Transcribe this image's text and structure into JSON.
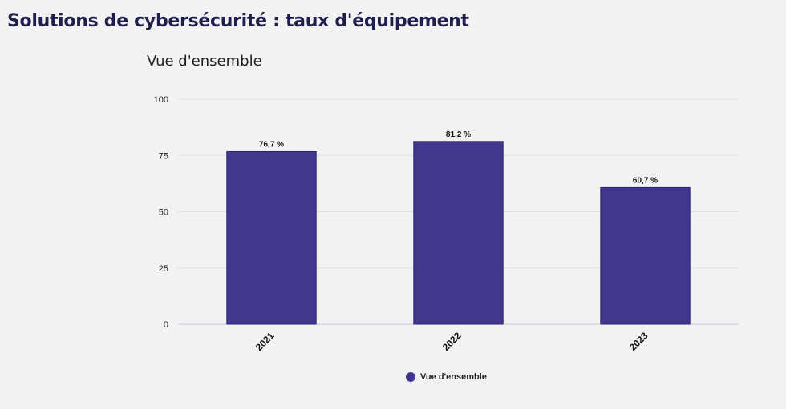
{
  "page": {
    "title": "Solutions de cybersécurité : taux d'équipement"
  },
  "chart_data": {
    "type": "bar",
    "title": "Vue d'ensemble",
    "categories": [
      "2021",
      "2022",
      "2023"
    ],
    "series": [
      {
        "name": "Vue d'ensemble",
        "values": [
          76.7,
          81.2,
          60.7
        ],
        "labels": [
          "76,7 %",
          "81,2 %",
          "60,7 %"
        ],
        "color": "#41378f"
      }
    ],
    "ylim": [
      0,
      100
    ],
    "yticks": [
      0,
      25,
      50,
      75,
      100
    ],
    "xlabel": "",
    "ylabel": "",
    "grid": true,
    "legend": "bottom-center",
    "colors": {
      "bar_fill": "#41378f",
      "bar_stroke": "#2a2170",
      "grid": "#e0e0e0",
      "axis": "#c8c8dc"
    }
  }
}
